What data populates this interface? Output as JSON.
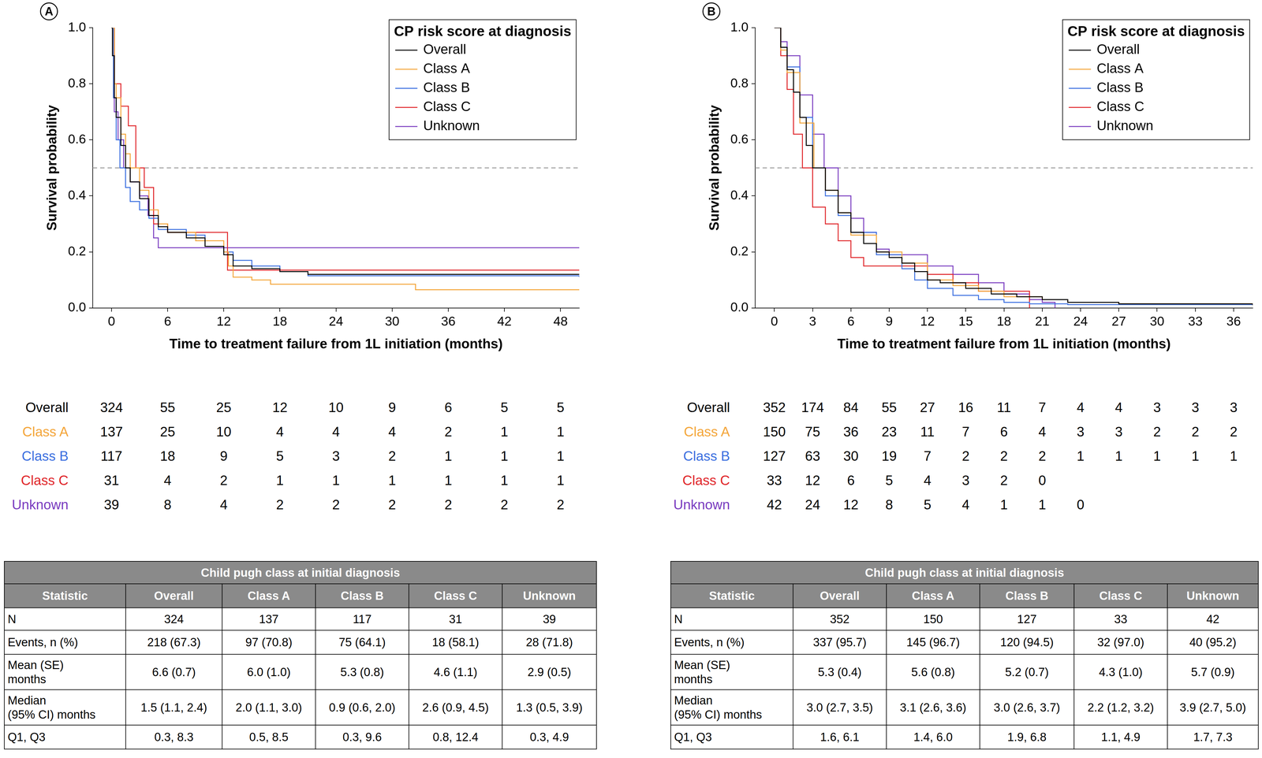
{
  "chart_data": [
    {
      "type": "step",
      "title": "A",
      "x_label": "Time to treatment failure from 1L initiation (months)",
      "y_label": "Survival probability",
      "legend_title": "CP risk score at diagnosis",
      "legend": "upper right",
      "grid": false,
      "xlim": [
        -2,
        50
      ],
      "xticks": [
        0,
        6,
        12,
        18,
        24,
        30,
        36,
        42,
        48
      ],
      "ylim": [
        0,
        1
      ],
      "yticks": [
        {
          "value": 0,
          "label": "0.0"
        },
        0.2,
        0.4,
        0.6,
        0.8,
        {
          "value": 1,
          "label": "1.0"
        }
      ],
      "annotations": [
        {
          "y": 0.5,
          "line_style": "dashed",
          "color": "#a0a0a0"
        }
      ],
      "series": [
        {
          "name": "Overall",
          "color": "#000000",
          "line_style": "solid",
          "x": [
            0,
            0.1,
            0.3,
            0.5,
            1,
            1.5,
            2,
            3,
            4,
            5,
            6,
            8,
            10,
            12,
            13,
            15,
            18,
            21,
            50
          ],
          "values": [
            1,
            0.9,
            0.75,
            0.68,
            0.58,
            0.5,
            0.45,
            0.39,
            0.33,
            0.29,
            0.27,
            0.25,
            0.22,
            0.19,
            0.15,
            0.14,
            0.13,
            0.12,
            0.12
          ]
        },
        {
          "name": "Class A",
          "color": "#f4a63a",
          "line_style": "solid",
          "x": [
            0,
            0.3,
            0.5,
            1,
            1.5,
            2,
            3,
            4,
            5,
            6,
            9,
            12,
            12.5,
            13,
            15,
            17,
            32.5,
            50
          ],
          "values": [
            1,
            0.8,
            0.75,
            0.62,
            0.55,
            0.5,
            0.42,
            0.35,
            0.3,
            0.27,
            0.24,
            0.2,
            0.15,
            0.11,
            0.1,
            0.085,
            0.065,
            0.065
          ]
        },
        {
          "name": "Class B",
          "color": "#3b6fe0",
          "line_style": "solid",
          "x": [
            0,
            0.2,
            0.5,
            0.9,
            1.5,
            2,
            3,
            4,
            5,
            8,
            10,
            12,
            13,
            15,
            18,
            21,
            50
          ],
          "values": [
            1,
            0.75,
            0.6,
            0.5,
            0.43,
            0.38,
            0.35,
            0.32,
            0.28,
            0.26,
            0.22,
            0.2,
            0.17,
            0.15,
            0.13,
            0.115,
            0.11
          ]
        },
        {
          "name": "Class C",
          "color": "#e0262a",
          "line_style": "solid",
          "x": [
            0,
            0.3,
            1,
            1.8,
            2.6,
            3.5,
            4.5,
            6,
            12.4,
            50
          ],
          "values": [
            1,
            0.8,
            0.72,
            0.65,
            0.5,
            0.43,
            0.3,
            0.27,
            0.135,
            0.135
          ]
        },
        {
          "name": "Unknown",
          "color": "#7a3cc0",
          "line_style": "solid",
          "x": [
            0,
            0.3,
            0.7,
            1.3,
            2,
            3,
            3.9,
            4.5,
            5,
            50
          ],
          "values": [
            1,
            0.7,
            0.6,
            0.5,
            0.45,
            0.4,
            0.33,
            0.25,
            0.215,
            0.215
          ]
        }
      ]
    },
    {
      "type": "step",
      "title": "B",
      "x_label": "Time to treatment failure from 1L initiation (months)",
      "y_label": "Survival probability",
      "legend_title": "CP risk score at diagnosis",
      "legend": "upper right",
      "grid": false,
      "xlim": [
        -1.5,
        37.5
      ],
      "xticks": [
        0,
        3,
        6,
        9,
        12,
        15,
        18,
        21,
        24,
        27,
        30,
        33,
        36
      ],
      "ylim": [
        0,
        1
      ],
      "yticks": [
        {
          "value": 0,
          "label": "0.0"
        },
        0.2,
        0.4,
        0.6,
        0.8,
        {
          "value": 1,
          "label": "1.0"
        }
      ],
      "annotations": [
        {
          "y": 0.5,
          "line_style": "dashed",
          "color": "#a0a0a0"
        }
      ],
      "series": [
        {
          "name": "Overall",
          "color": "#000000",
          "line_style": "solid",
          "x": [
            0,
            0.5,
            1,
            1.5,
            2,
            2.5,
            3,
            4,
            5,
            6,
            7,
            8,
            9,
            10,
            11,
            12,
            13,
            15,
            17,
            19,
            21,
            23,
            27,
            37.5
          ],
          "values": [
            1,
            0.93,
            0.85,
            0.77,
            0.68,
            0.58,
            0.5,
            0.42,
            0.34,
            0.27,
            0.23,
            0.2,
            0.18,
            0.16,
            0.13,
            0.1,
            0.09,
            0.07,
            0.05,
            0.04,
            0.03,
            0.02,
            0.015,
            0.01
          ]
        },
        {
          "name": "Class A",
          "color": "#f4a63a",
          "line_style": "solid",
          "x": [
            0,
            0.5,
            1,
            2,
            3.1,
            4,
            5,
            6,
            8,
            10,
            12,
            14,
            16,
            18,
            21,
            23,
            27,
            37.5
          ],
          "values": [
            1,
            0.92,
            0.84,
            0.66,
            0.5,
            0.42,
            0.34,
            0.26,
            0.2,
            0.16,
            0.1,
            0.08,
            0.06,
            0.04,
            0.03,
            0.02,
            0.015,
            0.012
          ]
        },
        {
          "name": "Class B",
          "color": "#3b6fe0",
          "line_style": "solid",
          "x": [
            0,
            0.5,
            1,
            2,
            3,
            4,
            5,
            6,
            8,
            10,
            11,
            12,
            14,
            16,
            18,
            20,
            23,
            37.5
          ],
          "values": [
            1,
            0.93,
            0.86,
            0.68,
            0.5,
            0.4,
            0.33,
            0.27,
            0.19,
            0.14,
            0.1,
            0.07,
            0.045,
            0.03,
            0.02,
            0.015,
            0.012,
            0.012
          ]
        },
        {
          "name": "Class C",
          "color": "#e0262a",
          "line_style": "solid",
          "x": [
            0,
            0.5,
            1,
            1.5,
            2.2,
            3,
            4,
            5,
            6,
            7,
            12,
            14,
            16,
            20
          ],
          "values": [
            1,
            0.9,
            0.78,
            0.62,
            0.5,
            0.36,
            0.3,
            0.24,
            0.18,
            0.15,
            0.12,
            0.09,
            0.06,
            0
          ]
        },
        {
          "name": "Unknown",
          "color": "#7a3cc0",
          "line_style": "solid",
          "x": [
            0,
            0.5,
            1,
            2,
            3,
            3.9,
            5,
            6,
            7,
            8,
            9,
            12,
            14,
            16,
            18,
            20,
            21,
            22
          ],
          "values": [
            1,
            0.95,
            0.9,
            0.76,
            0.62,
            0.5,
            0.4,
            0.32,
            0.27,
            0.21,
            0.19,
            0.15,
            0.12,
            0.09,
            0.05,
            0.03,
            0.02,
            0
          ]
        }
      ]
    }
  ],
  "at_risk_tables": [
    {
      "rows": [
        {
          "name": "Overall",
          "values": [
            324,
            55,
            25,
            12,
            10,
            9,
            6,
            5,
            5
          ]
        },
        {
          "name": "Class A",
          "values": [
            137,
            25,
            10,
            4,
            4,
            4,
            2,
            1,
            1
          ]
        },
        {
          "name": "Class B",
          "values": [
            117,
            18,
            9,
            5,
            3,
            2,
            1,
            1,
            1
          ]
        },
        {
          "name": "Class C",
          "values": [
            31,
            4,
            2,
            1,
            1,
            1,
            1,
            1,
            1
          ]
        },
        {
          "name": "Unknown",
          "values": [
            39,
            8,
            4,
            2,
            2,
            2,
            2,
            2,
            2
          ]
        }
      ]
    },
    {
      "rows": [
        {
          "name": "Overall",
          "values": [
            352,
            174,
            84,
            55,
            27,
            16,
            11,
            7,
            4,
            4,
            3,
            3,
            3
          ]
        },
        {
          "name": "Class A",
          "values": [
            150,
            75,
            36,
            23,
            11,
            7,
            6,
            4,
            3,
            3,
            2,
            2,
            2
          ]
        },
        {
          "name": "Class B",
          "values": [
            127,
            63,
            30,
            19,
            7,
            2,
            2,
            2,
            1,
            1,
            1,
            1,
            1
          ]
        },
        {
          "name": "Class C",
          "values": [
            33,
            12,
            6,
            5,
            4,
            3,
            2,
            0,
            null,
            null,
            null,
            null,
            null
          ]
        },
        {
          "name": "Unknown",
          "values": [
            42,
            24,
            12,
            8,
            5,
            4,
            1,
            1,
            0,
            null,
            null,
            null,
            null
          ]
        }
      ]
    }
  ],
  "summary_tables": [
    {
      "title": "Child pugh class at initial diagnosis",
      "columns": [
        "Statistic",
        "Overall",
        "Class A",
        "Class B",
        "Class C",
        "Unknown"
      ],
      "rows": [
        [
          "N",
          "324",
          "137",
          "117",
          "31",
          "39"
        ],
        [
          "Events, n (%)",
          "218 (67.3)",
          "97 (70.8)",
          "75 (64.1)",
          "18 (58.1)",
          "28 (71.8)"
        ],
        [
          "Mean (SE)\nmonths",
          "6.6 (0.7)",
          "6.0 (1.0)",
          "5.3 (0.8)",
          "4.6 (1.1)",
          "2.9 (0.5)"
        ],
        [
          "Median\n(95% CI) months",
          "1.5 (1.1, 2.4)",
          "2.0 (1.1, 3.0)",
          "0.9 (0.6, 2.0)",
          "2.6 (0.9, 4.5)",
          "1.3 (0.5, 3.9)"
        ],
        [
          "Q1, Q3",
          "0.3, 8.3",
          "0.5, 8.5",
          "0.3, 9.6",
          "0.8, 12.4",
          "0.3, 4.9"
        ]
      ]
    },
    {
      "title": "Child pugh class at initial diagnosis",
      "columns": [
        "Statistic",
        "Overall",
        "Class A",
        "Class B",
        "Class C",
        "Unknown"
      ],
      "rows": [
        [
          "N",
          "352",
          "150",
          "127",
          "33",
          "42"
        ],
        [
          "Events, n (%)",
          "337 (95.7)",
          "145 (96.7)",
          "120 (94.5)",
          "32 (97.0)",
          "40 (95.2)"
        ],
        [
          "Mean (SE)\nmonths",
          "5.3 (0.4)",
          "5.6 (0.8)",
          "5.2 (0.7)",
          "4.3 (1.0)",
          "5.7 (0.9)"
        ],
        [
          "Median\n(95% CI) months",
          "3.0 (2.7, 3.5)",
          "3.1 (2.6, 3.6)",
          "3.0 (2.6, 3.7)",
          "2.2 (1.2, 3.2)",
          "3.9 (2.7, 5.0)"
        ],
        [
          "Q1, Q3",
          "1.6, 6.1",
          "1.4, 6.0",
          "1.9, 6.8",
          "1.1, 4.9",
          "1.7, 7.3"
        ]
      ]
    }
  ]
}
